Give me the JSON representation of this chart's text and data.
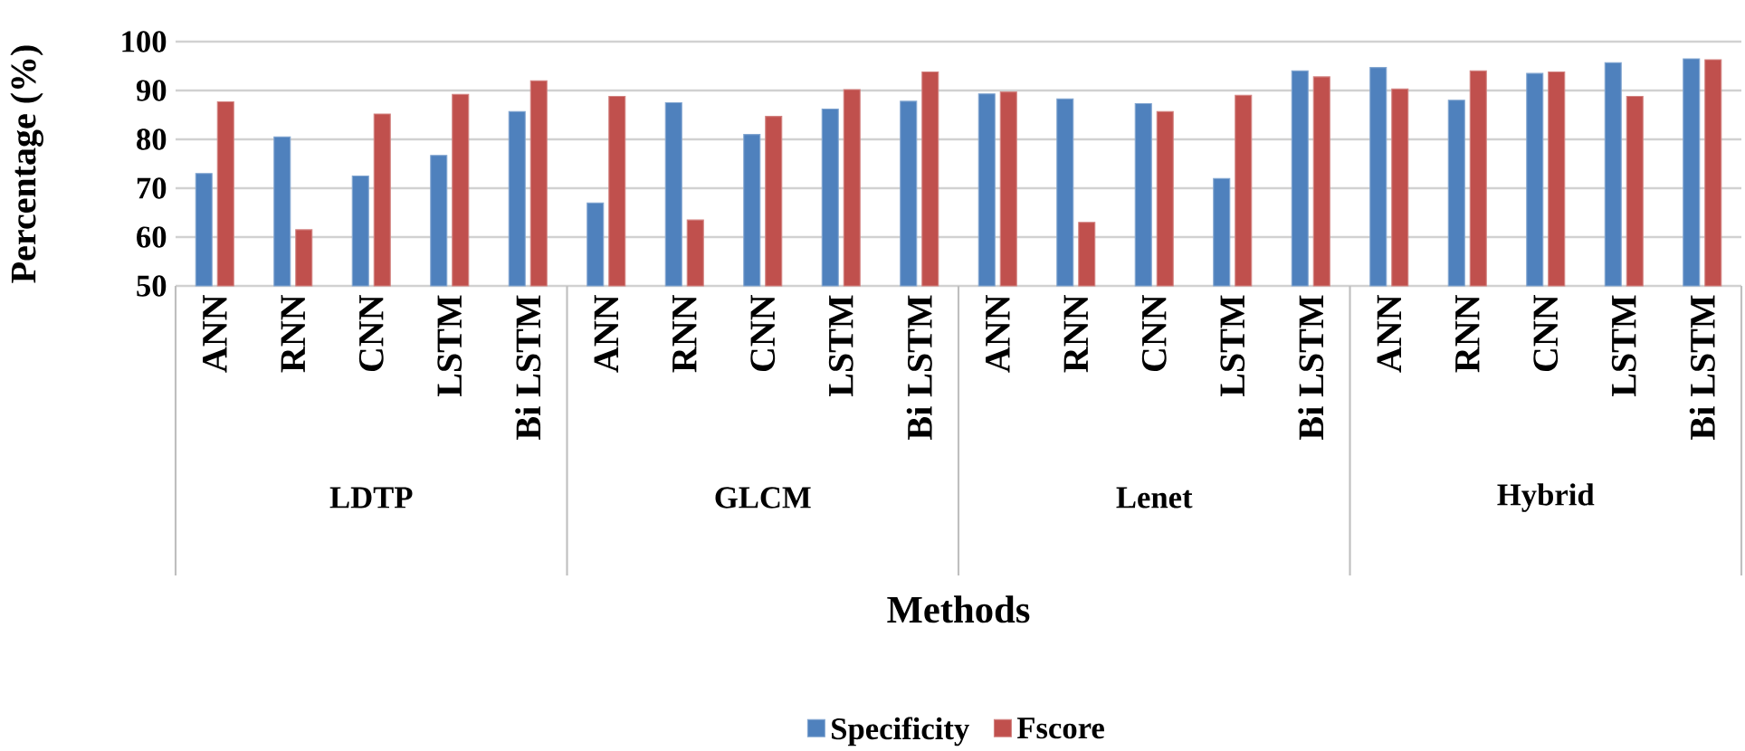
{
  "chart_data": {
    "type": "bar",
    "xlabel": "Methods",
    "ylabel": "Percentage (%)",
    "categories": [
      "ANN",
      "RNN",
      "CNN",
      "LSTM",
      "Bi LSTM",
      "ANN",
      "RNN",
      "CNN",
      "LSTM",
      "Bi LSTM",
      "ANN",
      "RNN",
      "CNN",
      "LSTM",
      "Bi LSTM",
      "ANN",
      "RNN",
      "CNN",
      "LSTM",
      "Bi LSTM"
    ],
    "annotations": [
      "LDTP",
      "GLCM",
      "Lenet",
      "Hybrid"
    ],
    "series": [
      {
        "name": "Specificity",
        "color": "#4f81bd",
        "values": [
          73,
          80.5,
          72.5,
          76.7,
          85.7,
          67,
          87.5,
          81,
          86.2,
          87.8,
          89.3,
          88.3,
          87.3,
          72,
          94,
          94.7,
          88,
          93.5,
          95.7,
          96.5
        ]
      },
      {
        "name": "Fscore",
        "color": "#c0504d",
        "values": [
          87.7,
          61.5,
          85.2,
          89.2,
          92,
          88.8,
          63.5,
          84.7,
          90.2,
          93.8,
          89.7,
          63,
          85.7,
          89,
          92.8,
          90.3,
          94,
          93.8,
          88.8,
          96.3
        ]
      }
    ],
    "ylim": [
      50,
      100
    ],
    "yticks": [
      50,
      60,
      70,
      80,
      90,
      100
    ],
    "grid": "y",
    "legend": "bottom"
  }
}
